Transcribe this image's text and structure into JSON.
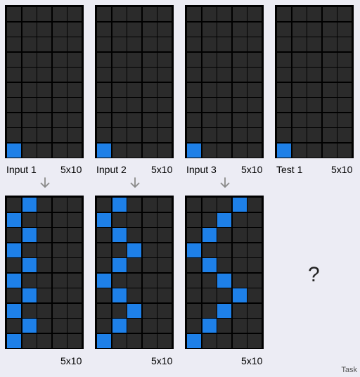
{
  "grid_size": "5x10",
  "colors": {
    "background": "#ececf4",
    "cell_empty": "#2b2b2b",
    "cell_filled": "#1e80e8",
    "border": "#000000"
  },
  "pairs": [
    {
      "input_label": "Input 1",
      "input_size": "5x10",
      "input_cells": [
        [
          9,
          0
        ]
      ],
      "output_size": "5x10",
      "output_cells": [
        [
          0,
          1
        ],
        [
          1,
          0
        ],
        [
          2,
          1
        ],
        [
          3,
          0
        ],
        [
          4,
          1
        ],
        [
          5,
          0
        ],
        [
          6,
          1
        ],
        [
          7,
          0
        ],
        [
          8,
          1
        ],
        [
          9,
          0
        ]
      ]
    },
    {
      "input_label": "Input 2",
      "input_size": "5x10",
      "input_cells": [
        [
          9,
          0
        ]
      ],
      "output_size": "5x10",
      "output_cells": [
        [
          0,
          1
        ],
        [
          1,
          0
        ],
        [
          2,
          1
        ],
        [
          3,
          2
        ],
        [
          4,
          1
        ],
        [
          5,
          0
        ],
        [
          6,
          1
        ],
        [
          7,
          2
        ],
        [
          8,
          1
        ],
        [
          9,
          0
        ]
      ]
    },
    {
      "input_label": "Input 3",
      "input_size": "5x10",
      "input_cells": [
        [
          9,
          0
        ]
      ],
      "output_size": "5x10",
      "output_cells": [
        [
          0,
          3
        ],
        [
          1,
          2
        ],
        [
          2,
          1
        ],
        [
          3,
          0
        ],
        [
          4,
          1
        ],
        [
          5,
          2
        ],
        [
          6,
          3
        ],
        [
          7,
          2
        ],
        [
          8,
          1
        ],
        [
          9,
          0
        ]
      ]
    }
  ],
  "test": {
    "label": "Test 1",
    "size": "5x10",
    "cells": [
      [
        9,
        0
      ]
    ],
    "unknown_output": "?"
  },
  "task_label": "Task",
  "arrow_icon": "arrow-down-icon"
}
